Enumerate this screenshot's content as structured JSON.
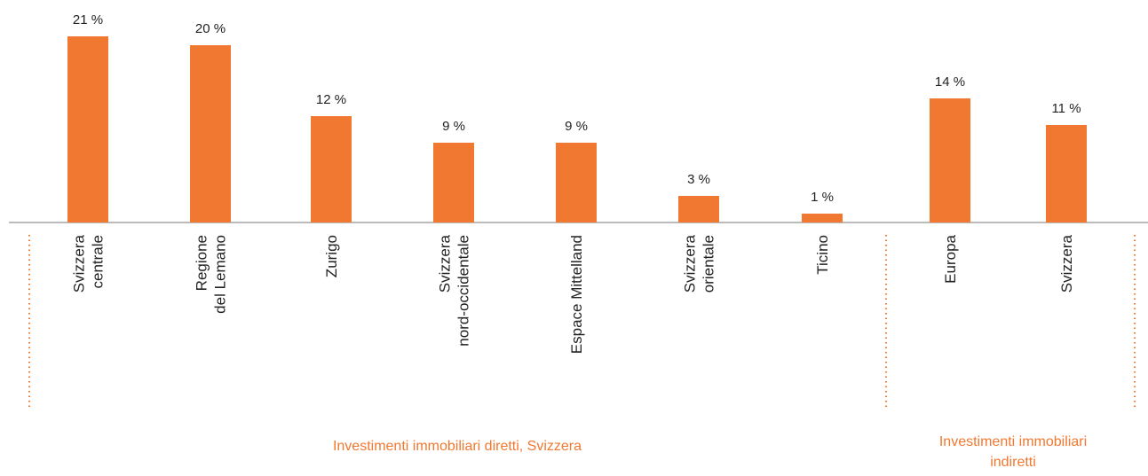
{
  "chart_data": {
    "type": "bar",
    "categories": [
      [
        "Svizzera",
        "centrale"
      ],
      [
        "Regione",
        "del Lemano"
      ],
      [
        "Zurigo"
      ],
      [
        "Svizzera",
        "nord-occidentale"
      ],
      [
        "Espace Mittelland"
      ],
      [
        "Svizzera",
        "orientale"
      ],
      [
        "Ticino"
      ],
      [
        "Europa"
      ],
      [
        "Svizzera"
      ]
    ],
    "values": [
      21,
      20,
      12,
      9,
      9,
      3,
      1,
      14,
      11
    ],
    "value_labels": [
      "21 %",
      "20 %",
      "12 %",
      "9 %",
      "9 %",
      "3 %",
      "1 %",
      "14 %",
      "11 %"
    ],
    "color": "#f07830",
    "groups": [
      {
        "label": [
          "Investimenti immobiliari diretti, Svizzera"
        ]
      },
      {
        "label": [
          "Investimenti immobiliari",
          "indiretti"
        ]
      }
    ]
  }
}
